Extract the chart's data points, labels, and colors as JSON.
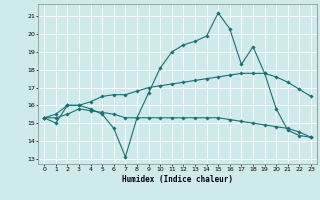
{
  "xlabel": "Humidex (Indice chaleur)",
  "bg_color": "#ceeaea",
  "grid_color": "#ffffff",
  "line_color": "#1a7070",
  "xlim": [
    -0.5,
    23.5
  ],
  "ylim": [
    12.7,
    21.7
  ],
  "yticks": [
    13,
    14,
    15,
    16,
    17,
    18,
    19,
    20,
    21
  ],
  "xticks": [
    0,
    1,
    2,
    3,
    4,
    5,
    6,
    7,
    8,
    9,
    10,
    11,
    12,
    13,
    14,
    15,
    16,
    17,
    18,
    19,
    20,
    21,
    22,
    23
  ],
  "series": [
    [
      15.3,
      15.0,
      16.0,
      16.0,
      15.8,
      15.5,
      14.7,
      13.1,
      15.3,
      16.7,
      18.1,
      19.0,
      19.4,
      19.6,
      19.9,
      21.2,
      20.3,
      18.3,
      19.3,
      17.8,
      15.8,
      14.6,
      14.3,
      14.2
    ],
    [
      15.3,
      15.5,
      16.0,
      16.0,
      16.2,
      16.5,
      16.6,
      16.6,
      16.8,
      17.0,
      17.1,
      17.2,
      17.3,
      17.4,
      17.5,
      17.6,
      17.7,
      17.8,
      17.8,
      17.8,
      17.6,
      17.3,
      16.9,
      16.5
    ],
    [
      15.3,
      15.3,
      15.5,
      15.8,
      15.7,
      15.6,
      15.5,
      15.3,
      15.3,
      15.3,
      15.3,
      15.3,
      15.3,
      15.3,
      15.3,
      15.3,
      15.2,
      15.1,
      15.0,
      14.9,
      14.8,
      14.7,
      14.5,
      14.2
    ]
  ]
}
